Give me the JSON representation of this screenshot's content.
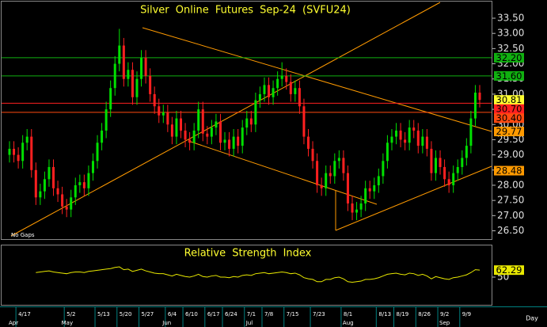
{
  "chart_data": [
    {
      "type": "candlestick",
      "title": "Silver Online Futures Sep-24 (SVFU24)",
      "note": "No Gaps",
      "x_unit_label": "Day",
      "up_color": "#00e000",
      "down_color": "#ff2020",
      "ylim": [
        26.2,
        34.1
      ],
      "yticks": [
        {
          "value": 33.5,
          "label": "33.50"
        },
        {
          "value": 33,
          "label": "33.00"
        },
        {
          "value": 32.5,
          "label": "32.50"
        },
        {
          "value": 32,
          "label": "32.00"
        },
        {
          "value": 31.5,
          "label": "31.50"
        },
        {
          "value": 31,
          "label": "31.00"
        },
        {
          "value": 30.5,
          "label": "30.50"
        },
        {
          "value": 30,
          "label": "30.00"
        },
        {
          "value": 29.5,
          "label": "29.50"
        },
        {
          "value": 29,
          "label": "29.00"
        },
        {
          "value": 28.5,
          "label": "28.50"
        },
        {
          "value": 28,
          "label": "28.00"
        },
        {
          "value": 27.5,
          "label": "27.50"
        },
        {
          "value": 27,
          "label": "27.00"
        },
        {
          "value": 26.5,
          "label": "26.50"
        }
      ],
      "levels": [
        {
          "value": 32.2,
          "label": "32.20",
          "color": "#10b010",
          "line": true
        },
        {
          "value": 31.6,
          "label": "31.60",
          "color": "#10b010",
          "line": true
        },
        {
          "value": 30.7,
          "label": "30.70",
          "color": "#ff2020",
          "line": true
        },
        {
          "value": 30.4,
          "label": "30.40",
          "color": "#ff4a10",
          "line": true
        },
        {
          "value": 29.77,
          "label": "29.77",
          "color": "#ff9a00",
          "line": false
        },
        {
          "value": 28.48,
          "label": "28.48",
          "color": "#ff9a00",
          "line": false
        }
      ],
      "last_price_color": "#ffff30",
      "categories": [
        null,
        null,
        "4/17",
        null,
        null,
        null,
        null,
        null,
        null,
        null,
        null,
        null,
        null,
        "5/2",
        null,
        null,
        null,
        null,
        null,
        null,
        "5/13",
        null,
        null,
        null,
        null,
        "5/20",
        null,
        null,
        null,
        null,
        "5/27",
        null,
        null,
        null,
        null,
        null,
        "6/4",
        null,
        null,
        null,
        "6/10",
        null,
        null,
        null,
        null,
        "6/17",
        null,
        null,
        null,
        "6/24",
        null,
        null,
        null,
        null,
        "7/1",
        null,
        null,
        null,
        "7/8",
        null,
        null,
        null,
        null,
        "7/15",
        null,
        null,
        null,
        null,
        null,
        "7/23",
        null,
        null,
        null,
        null,
        null,
        null,
        "8/1",
        null,
        null,
        null,
        null,
        null,
        null,
        null,
        "8/13",
        null,
        null,
        null,
        "8/19",
        null,
        null,
        null,
        null,
        "8/26",
        null,
        null,
        null,
        null,
        "9/2",
        null,
        null,
        null,
        null,
        "9/9",
        null,
        null,
        null,
        null
      ],
      "months": [
        "Apr",
        null,
        null,
        null,
        null,
        null,
        null,
        null,
        null,
        null,
        null,
        null,
        "May",
        null,
        null,
        null,
        null,
        null,
        null,
        null,
        null,
        null,
        null,
        null,
        null,
        null,
        null,
        null,
        null,
        null,
        null,
        null,
        null,
        null,
        null,
        "Jun",
        null,
        null,
        null,
        null,
        null,
        null,
        null,
        null,
        null,
        null,
        null,
        null,
        null,
        null,
        null,
        null,
        null,
        null,
        "Jul",
        null,
        null,
        null,
        null,
        null,
        null,
        null,
        null,
        null,
        null,
        null,
        null,
        null,
        null,
        null,
        null,
        null,
        null,
        null,
        null,
        null,
        "Aug",
        null,
        null,
        null,
        null,
        null,
        null,
        null,
        null,
        null,
        null,
        null,
        null,
        null,
        null,
        null,
        null,
        null,
        null,
        null,
        null,
        null,
        "Sep",
        null,
        null,
        null,
        null,
        null,
        null,
        null,
        null,
        null
      ],
      "candles": [
        [
          29.0,
          29.45,
          28.75,
          29.2
        ],
        [
          29.2,
          29.45,
          28.75,
          29.0
        ],
        [
          29.0,
          29.25,
          28.55,
          28.8
        ],
        [
          28.8,
          29.65,
          28.55,
          29.4
        ],
        [
          29.4,
          29.85,
          29.15,
          29.6
        ],
        [
          29.6,
          29.85,
          28.25,
          28.5
        ],
        [
          28.5,
          28.75,
          27.35,
          27.6
        ],
        [
          27.6,
          28.05,
          27.35,
          27.8
        ],
        [
          27.8,
          28.45,
          27.55,
          28.2
        ],
        [
          28.2,
          28.85,
          27.95,
          28.6
        ],
        [
          28.6,
          28.85,
          27.65,
          27.9
        ],
        [
          27.9,
          28.15,
          27.45,
          27.7
        ],
        [
          27.7,
          27.95,
          27.05,
          27.3
        ],
        [
          27.3,
          27.55,
          26.95,
          27.2
        ],
        [
          27.2,
          27.85,
          26.95,
          27.6
        ],
        [
          27.6,
          28.25,
          27.35,
          28.0
        ],
        [
          28.0,
          28.35,
          27.75,
          28.1
        ],
        [
          28.1,
          28.35,
          27.65,
          27.9
        ],
        [
          27.9,
          28.65,
          27.65,
          28.4
        ],
        [
          28.4,
          29.05,
          28.15,
          28.8
        ],
        [
          28.8,
          29.65,
          28.55,
          29.4
        ],
        [
          29.4,
          30.05,
          29.15,
          29.8
        ],
        [
          29.8,
          30.75,
          29.55,
          30.5
        ],
        [
          30.5,
          31.45,
          30.25,
          31.2
        ],
        [
          31.2,
          32.25,
          30.95,
          32.0
        ],
        [
          32.0,
          33.15,
          31.75,
          32.6
        ],
        [
          32.6,
          32.85,
          31.25,
          31.5
        ],
        [
          31.5,
          32.05,
          31.25,
          31.8
        ],
        [
          31.8,
          32.05,
          30.65,
          30.9
        ],
        [
          30.9,
          31.75,
          30.65,
          31.5
        ],
        [
          31.5,
          32.45,
          31.25,
          32.2
        ],
        [
          32.2,
          32.45,
          31.35,
          31.6
        ],
        [
          31.6,
          31.85,
          30.75,
          31.0
        ],
        [
          31.0,
          31.25,
          30.35,
          30.6
        ],
        [
          30.6,
          30.85,
          30.05,
          30.3
        ],
        [
          30.3,
          30.65,
          30.05,
          30.4
        ],
        [
          30.4,
          30.65,
          29.75,
          30.0
        ],
        [
          30.0,
          30.25,
          29.35,
          29.6
        ],
        [
          29.6,
          30.45,
          29.35,
          30.2
        ],
        [
          30.2,
          30.45,
          29.55,
          29.8
        ],
        [
          29.8,
          30.05,
          29.25,
          29.5
        ],
        [
          29.5,
          29.75,
          29.15,
          29.4
        ],
        [
          29.4,
          30.05,
          29.15,
          29.8
        ],
        [
          29.8,
          30.75,
          29.55,
          30.5
        ],
        [
          30.5,
          30.75,
          29.45,
          29.7
        ],
        [
          29.7,
          29.95,
          29.35,
          29.6
        ],
        [
          29.6,
          30.15,
          29.35,
          29.9
        ],
        [
          29.9,
          30.35,
          29.65,
          30.1
        ],
        [
          30.1,
          30.35,
          29.15,
          29.4
        ],
        [
          29.4,
          29.75,
          29.15,
          29.5
        ],
        [
          29.5,
          29.75,
          28.95,
          29.2
        ],
        [
          29.2,
          29.85,
          28.95,
          29.6
        ],
        [
          29.6,
          29.85,
          29.05,
          29.3
        ],
        [
          29.3,
          30.15,
          29.05,
          29.9
        ],
        [
          29.9,
          30.45,
          29.65,
          30.2
        ],
        [
          30.2,
          30.45,
          29.75,
          30.0
        ],
        [
          30.0,
          31.05,
          29.75,
          30.8
        ],
        [
          30.8,
          31.25,
          30.55,
          31.0
        ],
        [
          31.0,
          31.55,
          30.75,
          31.3
        ],
        [
          31.3,
          31.55,
          30.65,
          30.9
        ],
        [
          30.9,
          31.45,
          30.65,
          31.2
        ],
        [
          31.2,
          31.75,
          30.95,
          31.5
        ],
        [
          31.5,
          32.05,
          31.25,
          31.6
        ],
        [
          31.6,
          31.85,
          31.15,
          31.4
        ],
        [
          31.4,
          31.65,
          30.75,
          31.0
        ],
        [
          31.0,
          31.45,
          30.75,
          31.2
        ],
        [
          31.2,
          31.45,
          30.35,
          30.6
        ],
        [
          30.6,
          30.85,
          29.35,
          29.6
        ],
        [
          29.6,
          29.85,
          28.95,
          29.2
        ],
        [
          29.2,
          29.45,
          28.55,
          28.8
        ],
        [
          28.8,
          29.05,
          27.75,
          28.0
        ],
        [
          28.0,
          28.25,
          27.65,
          27.9
        ],
        [
          27.9,
          28.65,
          27.65,
          28.4
        ],
        [
          28.4,
          28.65,
          28.05,
          28.3
        ],
        [
          28.3,
          29.05,
          28.05,
          28.8
        ],
        [
          28.8,
          29.15,
          28.55,
          28.9
        ],
        [
          28.9,
          29.15,
          28.15,
          28.4
        ],
        [
          28.4,
          28.65,
          27.15,
          27.4
        ],
        [
          27.4,
          27.65,
          26.85,
          27.1
        ],
        [
          27.1,
          27.45,
          26.85,
          27.2
        ],
        [
          27.2,
          27.65,
          26.95,
          27.4
        ],
        [
          27.4,
          28.15,
          27.15,
          27.9
        ],
        [
          27.9,
          28.15,
          27.55,
          27.8
        ],
        [
          27.8,
          28.25,
          27.55,
          28.0
        ],
        [
          28.0,
          28.55,
          27.75,
          28.3
        ],
        [
          28.3,
          29.05,
          28.05,
          28.8
        ],
        [
          28.8,
          29.65,
          28.55,
          29.4
        ],
        [
          29.4,
          29.85,
          29.15,
          29.6
        ],
        [
          29.6,
          30.05,
          29.35,
          29.8
        ],
        [
          29.8,
          30.05,
          29.25,
          29.5
        ],
        [
          29.5,
          29.75,
          29.15,
          29.4
        ],
        [
          29.4,
          30.15,
          29.15,
          29.9
        ],
        [
          29.9,
          30.15,
          29.55,
          29.8
        ],
        [
          29.8,
          30.05,
          29.05,
          29.3
        ],
        [
          29.3,
          29.85,
          29.05,
          29.6
        ],
        [
          29.6,
          29.85,
          28.95,
          29.2
        ],
        [
          29.2,
          29.45,
          28.15,
          28.4
        ],
        [
          28.4,
          29.15,
          28.15,
          28.9
        ],
        [
          28.9,
          29.15,
          28.35,
          28.6
        ],
        [
          28.6,
          28.85,
          27.95,
          28.2
        ],
        [
          28.2,
          28.45,
          27.75,
          28.0
        ],
        [
          28.0,
          28.65,
          27.75,
          28.4
        ],
        [
          28.4,
          28.85,
          28.15,
          28.6
        ],
        [
          28.6,
          29.15,
          28.35,
          28.9
        ],
        [
          28.9,
          29.55,
          28.65,
          29.3
        ],
        [
          29.3,
          30.45,
          29.05,
          30.2
        ],
        [
          30.2,
          31.3,
          29.95,
          31.05
        ],
        [
          31.05,
          31.3,
          30.56,
          30.81
        ]
      ]
    },
    {
      "type": "line",
      "title": "Relative Strength Index",
      "color": "#e8e800",
      "ylim": [
        0,
        100
      ],
      "yticks": [
        50
      ],
      "values": [
        null,
        null,
        null,
        null,
        null,
        null,
        58,
        59,
        60,
        61,
        59,
        58,
        57,
        56,
        58,
        59,
        59,
        58,
        60,
        61,
        62,
        63,
        64,
        65,
        67,
        68,
        63,
        64,
        60,
        62,
        64,
        61,
        59,
        57,
        56,
        56,
        54,
        52,
        55,
        53,
        51,
        50,
        52,
        55,
        51,
        50,
        52,
        53,
        50,
        50,
        49,
        51,
        50,
        53,
        54,
        53,
        56,
        57,
        58,
        56,
        57,
        58,
        59,
        58,
        56,
        57,
        54,
        49,
        47,
        46,
        42,
        42,
        46,
        46,
        49,
        50,
        47,
        42,
        41,
        42,
        43,
        46,
        46,
        47,
        49,
        52,
        55,
        56,
        57,
        55,
        54,
        57,
        56,
        53,
        55,
        52,
        47,
        51,
        49,
        47,
        46,
        49,
        50,
        52,
        54,
        58,
        63,
        62.29
      ]
    }
  ]
}
